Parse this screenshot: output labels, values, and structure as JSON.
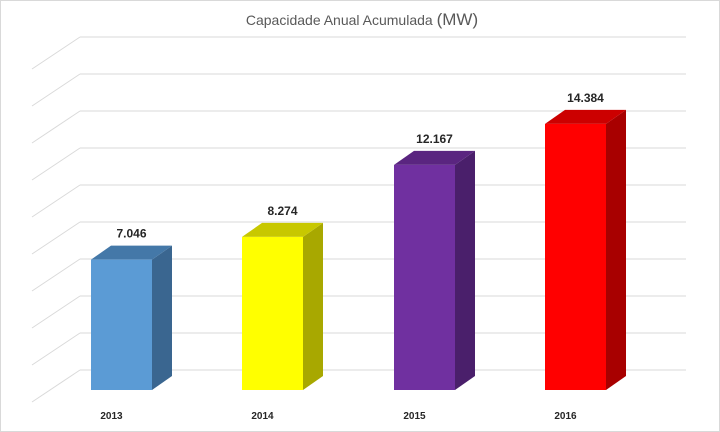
{
  "chart_data": {
    "type": "bar",
    "title": "Capacidade Anual Acumulada",
    "title_unit": "(MW)",
    "categories": [
      "2013",
      "2014",
      "2015",
      "2016"
    ],
    "values": [
      7046,
      8274,
      12167,
      14384
    ],
    "value_labels": [
      "7.046",
      "8.274",
      "12.167",
      "14.384"
    ],
    "colors": [
      "#5b9bd5",
      "#ffff00",
      "#7030a0",
      "#ff0000"
    ],
    "side_colors": [
      "#3a6690",
      "#a8a800",
      "#4a1f6b",
      "#a80000"
    ],
    "top_colors": [
      "#4478a8",
      "#c8c800",
      "#5a2580",
      "#cc0000"
    ],
    "ylim": [
      0,
      18000
    ],
    "grid": true,
    "legend": "none",
    "xlabel": "",
    "ylabel": ""
  }
}
